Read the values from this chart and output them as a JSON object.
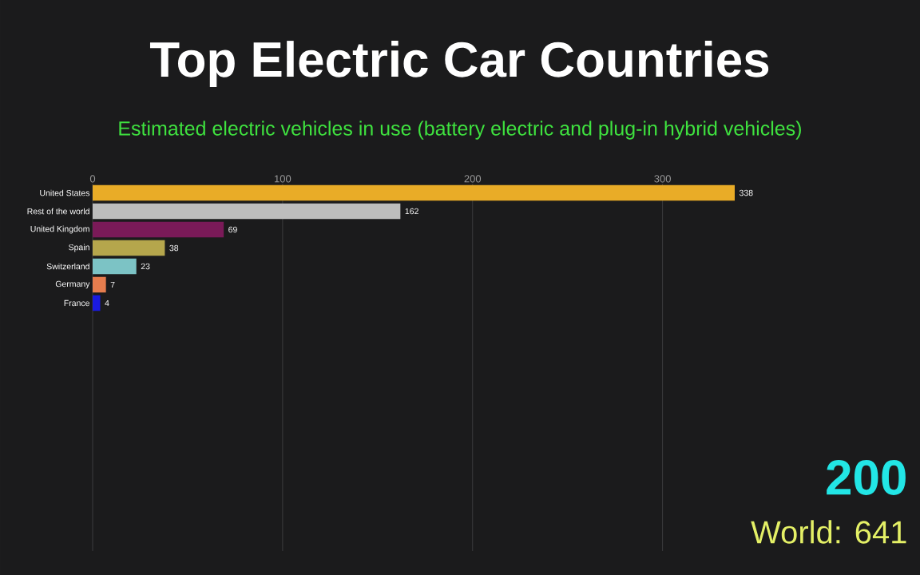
{
  "chart_data": {
    "type": "bar",
    "orientation": "horizontal",
    "title": "Top Electric Car Countries",
    "subtitle": "Estimated electric vehicles in use (battery electric and plug-in hybrid vehicles)",
    "categories": [
      "United States",
      "Rest of the world",
      "United Kingdom",
      "Spain",
      "Switzerland",
      "Germany",
      "France"
    ],
    "values": [
      338,
      162,
      69,
      38,
      23,
      7,
      4
    ],
    "colors": [
      "#e9ac27",
      "#bdbdbd",
      "#7a1a58",
      "#b5a64c",
      "#7cc3c5",
      "#e67d4e",
      "#1a1ae0"
    ],
    "xlim": [
      0,
      338
    ],
    "xticks": [
      0,
      100,
      200,
      300
    ],
    "grid": "x",
    "data_labels": true,
    "annotations": [
      "200",
      "World: 641"
    ]
  }
}
